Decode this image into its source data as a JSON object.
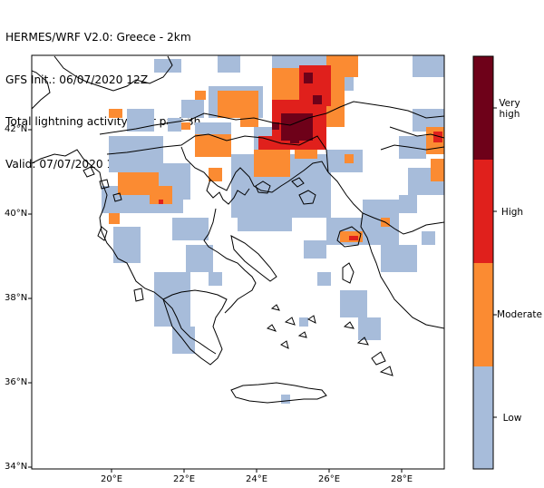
{
  "header": {
    "line1": "HERMES/WRF V2.0: Greece - 2km",
    "line2": "GFS Init.: 06/07/2020 12Z",
    "line3": "Total lightning activity over past 3h",
    "line4": "Valid: 07/07/2020 18Z"
  },
  "axes": {
    "lat_ticks": [
      "42°N",
      "40°N",
      "38°N",
      "36°N",
      "34°N"
    ],
    "lon_ticks": [
      "20°E",
      "22°E",
      "24°E",
      "26°E",
      "28°E"
    ]
  },
  "colorbar": {
    "levels": [
      {
        "label": "Low",
        "color": "#a7bcda"
      },
      {
        "label": "Moderate",
        "color": "#fb8b32"
      },
      {
        "label": "High",
        "color": "#e0201c"
      },
      {
        "label": "Very high",
        "color": "#6e0119"
      }
    ]
  },
  "colors": {
    "low": "#a7bcda",
    "moderate": "#fb8b32",
    "high": "#e0201c",
    "very_high": "#6e0119"
  }
}
